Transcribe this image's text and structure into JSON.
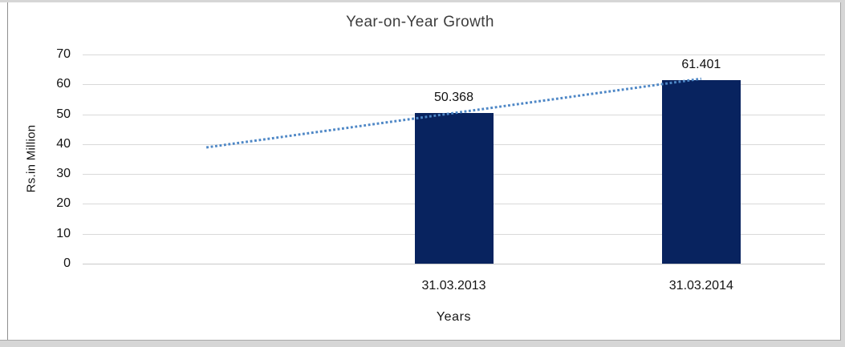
{
  "chart_data": {
    "type": "bar",
    "title": "Year-on-Year Growth",
    "categories": [
      "31.03.2013",
      "31.03.2014"
    ],
    "values": [
      50.368,
      61.401
    ],
    "data_labels": [
      "50.368",
      "61.401"
    ],
    "xlabel": "Years",
    "ylabel": "Rs.in Million",
    "ylim": [
      0,
      70
    ],
    "yticks": [
      0,
      10,
      20,
      30,
      40,
      50,
      60,
      70
    ],
    "grid": true,
    "legend": "none",
    "bar_color": "#08235F",
    "gridline_color": "#D9D9D9",
    "trendline": {
      "type": "linear",
      "style": "dotted",
      "color": "#4E87C6",
      "start_value": 38.9,
      "end_value": 61.9
    }
  }
}
